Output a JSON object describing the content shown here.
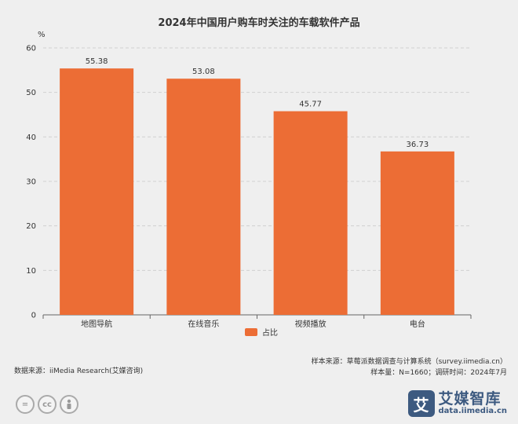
{
  "chart_data": {
    "type": "bar",
    "title": "2024年中国用户购车时关注的车载软件产品",
    "ylabel": "%",
    "xlabel": "",
    "categories": [
      "地图导航",
      "在线音乐",
      "视频播放",
      "电台"
    ],
    "series": [
      {
        "name": "占比",
        "values": [
          55.38,
          53.08,
          45.77,
          36.73
        ]
      }
    ],
    "ylim": [
      0,
      60
    ],
    "yticks": [
      0,
      10,
      20,
      30,
      40,
      50,
      60
    ],
    "grid": true,
    "legend": "bottom-center",
    "bar_color": "#ec6d35"
  },
  "footer": {
    "data_source": "数据来源：iiMedia Research(艾媒咨询)",
    "sample_source": "样本来源：草莓派数据调查与计算系统（survey.iimedia.cn）",
    "sample_size": "样本量：N=1660；调研时间：2024年7月"
  },
  "license_icons": [
    "equals-icon",
    "cc-icon",
    "person-icon"
  ],
  "logo": {
    "mark": "艾",
    "name": "艾媒智库",
    "url": "data.iimedia.cn"
  }
}
